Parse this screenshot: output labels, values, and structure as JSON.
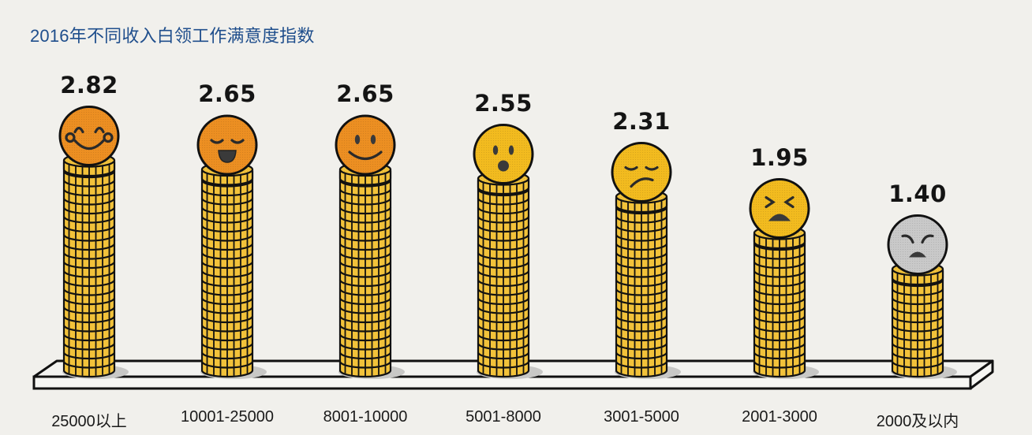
{
  "title": "2016年不同收入白领工作满意度指数",
  "colors": {
    "title": "#1f4e8c",
    "coin": "#f2c23a",
    "coin_outline": "#111111",
    "face_orange": "#ec8f22",
    "face_yellow": "#f2bb1f",
    "face_gray": "#c9c9c9",
    "background": "#f1f0ec"
  },
  "bars": [
    {
      "category": "25000以上",
      "value": "2.82",
      "face": "grinning-face-icon",
      "face_color": "#ec8f22"
    },
    {
      "category": "10001-25000",
      "value": "2.65",
      "face": "happy-closed-eyes-face-icon",
      "face_color": "#ec8f22"
    },
    {
      "category": "8001-10000",
      "value": "2.65",
      "face": "smiling-face-icon",
      "face_color": "#ec8f22"
    },
    {
      "category": "5001-8000",
      "value": "2.55",
      "face": "surprised-face-icon",
      "face_color": "#f2bb1f"
    },
    {
      "category": "3001-5000",
      "value": "2.31",
      "face": "displeased-face-icon",
      "face_color": "#f2bb1f"
    },
    {
      "category": "2001-3000",
      "value": "1.95",
      "face": "crying-face-icon",
      "face_color": "#f2bb1f"
    },
    {
      "category": "2000及以内",
      "value": "1.40",
      "face": "angry-face-icon",
      "face_color": "#c9c9c9"
    }
  ],
  "chart_data": {
    "type": "bar",
    "title": "2016年不同收入白领工作满意度指数",
    "xlabel": "",
    "ylabel": "",
    "categories": [
      "25000以上",
      "10001-25000",
      "8001-10000",
      "5001-8000",
      "3001-5000",
      "2001-3000",
      "2000及以内"
    ],
    "values": [
      2.82,
      2.65,
      2.65,
      2.55,
      2.31,
      1.95,
      1.4
    ],
    "data_labels": [
      "2.82",
      "2.65",
      "2.65",
      "2.55",
      "2.31",
      "1.95",
      "1.40"
    ],
    "grid": false,
    "legend": "none",
    "bar_style": "stacked coin pictogram with emoji face on top"
  }
}
